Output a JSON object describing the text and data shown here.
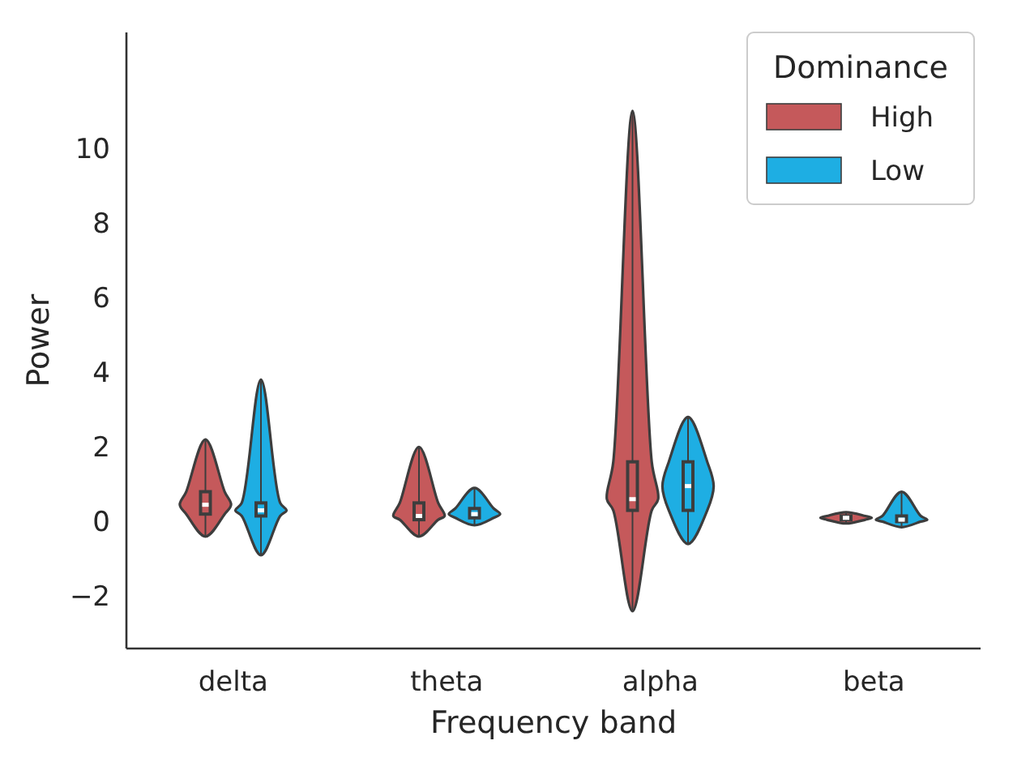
{
  "chart_data": {
    "type": "box",
    "xlabel": "Frequency band",
    "ylabel": "Power",
    "legend_title": "Dominance",
    "legend": "top right",
    "categories": [
      "delta",
      "theta",
      "alpha",
      "beta"
    ],
    "ylim": [
      -3.4,
      13.1
    ],
    "yticks": [
      {
        "value": -2,
        "label": "−2"
      },
      0,
      2,
      4,
      6,
      8,
      10
    ],
    "grid": false,
    "series": [
      {
        "name": "High",
        "color": "#c5595b",
        "boxes": [
          {
            "low": -0.4,
            "q1": 0.2,
            "median": 0.45,
            "q3": 0.8,
            "high": 2.2
          },
          {
            "low": -0.4,
            "q1": 0.05,
            "median": 0.15,
            "q3": 0.5,
            "high": 2.0
          },
          {
            "low": -2.4,
            "q1": 0.3,
            "median": 0.6,
            "q3": 1.6,
            "high": 11
          },
          {
            "low": -0.05,
            "q1": 0.05,
            "median": 0.1,
            "q3": 0.15,
            "high": 0.25
          }
        ]
      },
      {
        "name": "Low",
        "color": "#1eaee3",
        "boxes": [
          {
            "low": -0.9,
            "q1": 0.15,
            "median": 0.3,
            "q3": 0.5,
            "high": 3.8
          },
          {
            "low": -0.1,
            "q1": 0.1,
            "median": 0.2,
            "q3": 0.35,
            "high": 0.9
          },
          {
            "low": -0.6,
            "q1": 0.3,
            "median": 0.95,
            "q3": 1.6,
            "high": 2.8
          },
          {
            "low": -0.15,
            "q1": 0.0,
            "median": 0.05,
            "q3": 0.15,
            "high": 0.8
          }
        ]
      }
    ]
  }
}
